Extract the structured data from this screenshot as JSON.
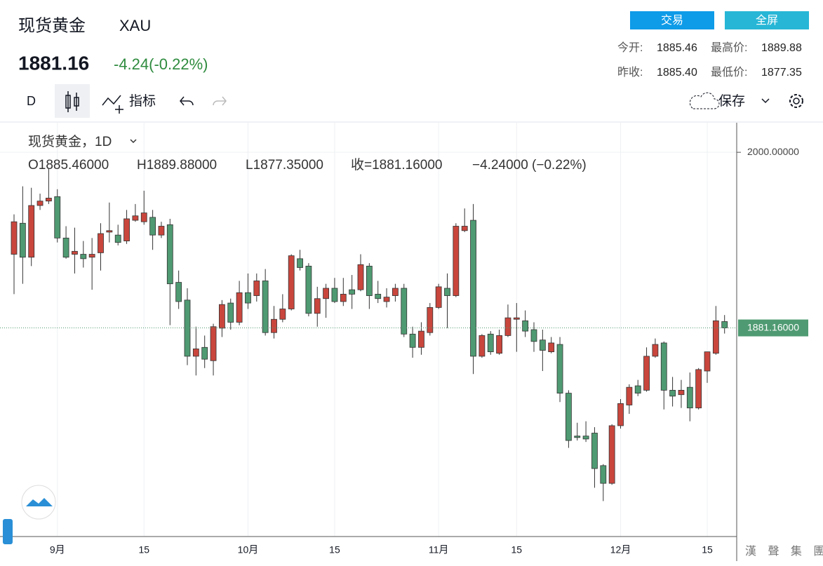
{
  "header": {
    "name": "现货黄金",
    "symbol": "XAU",
    "price": "1881.16",
    "change": "-4.24(-0.22%)",
    "buttons": [
      "交易",
      "全屏"
    ],
    "stats": [
      [
        "今开:",
        "1885.46",
        "最高价:",
        "1889.88"
      ],
      [
        "昨收:",
        "1885.40",
        "最低价:",
        "1877.35"
      ]
    ]
  },
  "toolbar": {
    "interval": "D",
    "indicators": "指标",
    "save": "保存"
  },
  "chart_data": {
    "type": "candlestick",
    "legend_title": "现货黄金，1D",
    "legend_values": [
      "O1885.46000",
      "H1889.88000",
      "L1877.35000",
      "收=1881.16000",
      "−4.24000 (−0.22%)"
    ],
    "categories": [
      null,
      null,
      null,
      null,
      null,
      "9月",
      null,
      null,
      null,
      null,
      null,
      null,
      null,
      null,
      null,
      "15",
      null,
      null,
      null,
      null,
      null,
      null,
      null,
      null,
      null,
      null,
      null,
      "10月",
      null,
      null,
      null,
      null,
      null,
      null,
      null,
      null,
      null,
      "15",
      null,
      null,
      null,
      null,
      null,
      null,
      null,
      null,
      null,
      null,
      null,
      "11月",
      null,
      null,
      null,
      null,
      null,
      null,
      null,
      null,
      "15",
      null,
      null,
      null,
      null,
      null,
      null,
      null,
      null,
      null,
      null,
      null,
      "12月",
      null,
      null,
      null,
      null,
      null,
      null,
      null,
      null,
      null,
      "15",
      null,
      null
    ],
    "open": [
      1931,
      1952,
      1929,
      1964,
      1967,
      1970,
      1942,
      1931,
      1931,
      1929,
      1932,
      1946,
      1944,
      1940,
      1954,
      1953,
      1956,
      1944,
      1951,
      1912,
      1900,
      1862,
      1868,
      1859,
      1881,
      1898,
      1885,
      1905,
      1903,
      1913,
      1878,
      1887,
      1894,
      1928,
      1923,
      1891,
      1901,
      1908,
      1899,
      1907,
      1907,
      1923,
      1904,
      1899,
      1903,
      1908,
      1877,
      1868,
      1878,
      1895,
      1908,
      1903,
      1947,
      1954,
      1862,
      1877,
      1864,
      1876,
      1887,
      1886,
      1880,
      1873,
      1865,
      1870,
      1837,
      1808,
      1808,
      1810,
      1788,
      1776,
      1815,
      1829,
      1842,
      1839,
      1862,
      1871,
      1839,
      1836,
      1841,
      1827,
      1852,
      1864,
      1885.46
    ],
    "high": [
      1958,
      1977,
      1976,
      1972,
      1989,
      1975,
      1950,
      1949,
      1940,
      1942,
      1952,
      1966,
      1951,
      1961,
      1965,
      1974,
      1961,
      1953,
      1955,
      1920,
      1908,
      1882,
      1876,
      1884,
      1900,
      1901,
      1913,
      1918,
      1918,
      1921,
      1896,
      1904,
      1931,
      1934,
      1925,
      1909,
      1911,
      1915,
      1915,
      1917,
      1931,
      1925,
      1913,
      1908,
      1911,
      1911,
      1882,
      1885,
      1898,
      1911,
      1918,
      1952,
      1962,
      1965,
      1877,
      1879,
      1880,
      1897,
      1898,
      1893,
      1885,
      1880,
      1875,
      1875,
      1839,
      1817,
      1818,
      1814,
      1789,
      1816,
      1833,
      1843,
      1846,
      1868,
      1874,
      1872,
      1848,
      1846,
      1851,
      1854,
      1865,
      1896,
      1889.88
    ],
    "low": [
      1904,
      1911,
      1923,
      1961,
      1965,
      1939,
      1928,
      1918,
      1922,
      1907,
      1920,
      1939,
      1937,
      1938,
      1953,
      1951,
      1934,
      1942,
      1883,
      1894,
      1856,
      1849,
      1854,
      1849,
      1875,
      1880,
      1883,
      1894,
      1899,
      1876,
      1874,
      1885,
      1893,
      1920,
      1889,
      1882,
      1888,
      1898,
      1896,
      1894,
      1906,
      1894,
      1898,
      1895,
      1899,
      1875,
      1861,
      1863,
      1876,
      1894,
      1881,
      1902,
      1946,
      1850,
      1861,
      1863,
      1863,
      1875,
      1865,
      1875,
      1865,
      1852,
      1864,
      1831,
      1800,
      1805,
      1804,
      1773,
      1764,
      1775,
      1813,
      1823,
      1835,
      1838,
      1861,
      1826,
      1828,
      1827,
      1818,
      1826,
      1844,
      1863,
      1877.35
    ],
    "close": [
      1953,
      1929,
      1964,
      1967,
      1969,
      1942,
      1929,
      1933,
      1928,
      1931,
      1945,
      1947,
      1939,
      1955,
      1957,
      1959,
      1944,
      1950,
      1911,
      1899,
      1862,
      1867,
      1860,
      1882,
      1897,
      1885,
      1905,
      1898,
      1913,
      1878,
      1887,
      1894,
      1930,
      1922,
      1891,
      1901,
      1908,
      1899,
      1904,
      1904,
      1924,
      1903,
      1901,
      1902,
      1908,
      1877,
      1868,
      1879,
      1895,
      1909,
      1903,
      1950,
      1950,
      1862,
      1876,
      1865,
      1876,
      1888,
      1888,
      1879,
      1872,
      1866,
      1871,
      1837,
      1805,
      1807,
      1806,
      1786,
      1776,
      1815,
      1830,
      1841,
      1837,
      1862,
      1870,
      1839,
      1835,
      1839,
      1827,
      1853,
      1865,
      1886,
      1881.16
    ],
    "up_color": "#c9463d",
    "down_color": "#4f9a72",
    "ylim": [
      1740,
      2020
    ],
    "yticks": [
      {
        "value": 2000,
        "label": "2000.00000"
      }
    ],
    "last_price": {
      "value": 1881.16,
      "label": "1881.16000"
    },
    "grid": true
  }
}
